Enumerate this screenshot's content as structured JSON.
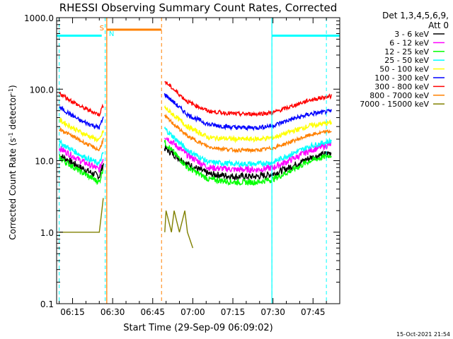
{
  "chart_data": {
    "type": "line",
    "title": "RHESSI Observing Summary Count Rates, Corrected",
    "xlabel": "Start Time (29-Sep-09 06:09:02)",
    "ylabel_parts": [
      "Corrected Count Rate (s",
      "-1",
      " detector",
      "-1",
      ")"
    ],
    "yscale": "log",
    "ylim": [
      0.1,
      1000
    ],
    "xlim_minutes_after_0600": [
      9.03,
      115.0
    ],
    "x_ticks": [
      {
        "label": "06:15",
        "m": 15
      },
      {
        "label": "06:30",
        "m": 30
      },
      {
        "label": "06:45",
        "m": 45
      },
      {
        "label": "07:00",
        "m": 60
      },
      {
        "label": "07:15",
        "m": 75
      },
      {
        "label": "07:30",
        "m": 90
      },
      {
        "label": "07:45",
        "m": 105
      }
    ],
    "y_ticks": [
      {
        "label": "0.1",
        "v": 0.1
      },
      {
        "label": "1.0",
        "v": 1
      },
      {
        "label": "10.0",
        "v": 10
      },
      {
        "label": "100.0",
        "v": 100
      },
      {
        "label": "1000.0",
        "v": 1000
      }
    ],
    "legend_header": [
      "Det 1,3,4,5,6,9,",
      "Att 0"
    ],
    "legend_placement": "right",
    "series": [
      {
        "name": "3 - 6 keV",
        "color": "#000000",
        "x": [
          10,
          18,
          25,
          26.5,
          49.5,
          58,
          66,
          76,
          84,
          90,
          96,
          104,
          112
        ],
        "y": [
          12,
          8,
          6,
          9,
          15,
          9,
          6.5,
          6,
          6,
          6.5,
          8,
          11,
          13
        ]
      },
      {
        "name": "6 - 12 keV",
        "color": "#ff00ff",
        "x": [
          10,
          18,
          25,
          26.5,
          49.5,
          58,
          66,
          76,
          84,
          90,
          96,
          104,
          112
        ],
        "y": [
          15,
          10,
          7.5,
          11,
          22,
          12,
          8,
          7.5,
          7.5,
          8,
          10,
          14,
          17
        ]
      },
      {
        "name": "12 - 25 keV",
        "color": "#00ff00",
        "x": [
          10,
          18,
          25,
          26.5,
          49.5,
          58,
          66,
          76,
          84,
          90,
          96,
          104,
          112
        ],
        "y": [
          11,
          7,
          5,
          8,
          18,
          8,
          5.5,
          5,
          5,
          5.5,
          7,
          10,
          12
        ]
      },
      {
        "name": "25 - 50 keV",
        "color": "#00ffff",
        "x": [
          10,
          18,
          25,
          26.5,
          49.5,
          58,
          66,
          76,
          84,
          90,
          96,
          104,
          112
        ],
        "y": [
          18,
          12,
          9,
          13,
          28,
          14,
          9.5,
          9,
          9,
          9.5,
          12,
          16,
          19
        ]
      },
      {
        "name": "50 - 100 keV",
        "color": "#ffff00",
        "x": [
          10,
          18,
          25,
          26.5,
          49.5,
          58,
          66,
          76,
          84,
          90,
          96,
          104,
          112
        ],
        "y": [
          37,
          25,
          19,
          26,
          55,
          30,
          21,
          20,
          20,
          21,
          25,
          31,
          34
        ]
      },
      {
        "name": "100 - 300 keV",
        "color": "#0000ff",
        "x": [
          10,
          18,
          25,
          26.5,
          49.5,
          58,
          66,
          76,
          84,
          90,
          96,
          104,
          112
        ],
        "y": [
          56,
          36,
          29,
          40,
          85,
          44,
          32,
          29,
          29,
          31,
          37,
          45,
          49
        ]
      },
      {
        "name": "300 - 800 keV",
        "color": "#ff0000",
        "x": [
          10,
          18,
          25,
          26.5,
          49.5,
          58,
          66,
          76,
          84,
          90,
          96,
          104,
          112
        ],
        "y": [
          88,
          57,
          44,
          61,
          128,
          67,
          49,
          45,
          45,
          47,
          56,
          71,
          80
        ]
      },
      {
        "name": "800 - 7000 keV",
        "color": "#ff8000",
        "x": [
          10,
          18,
          25,
          26.5,
          49.5,
          58,
          66,
          76,
          84,
          90,
          96,
          104,
          112
        ],
        "y": [
          28,
          19,
          14,
          20,
          42,
          22,
          15.5,
          14,
          14,
          15,
          18,
          23,
          26
        ]
      },
      {
        "name": "7000 - 15000 keV",
        "color": "#808000",
        "x": [
          10,
          25,
          26.5,
          49.5,
          50,
          52,
          53,
          55,
          57,
          58,
          60
        ],
        "y": [
          1,
          1,
          3,
          1,
          2,
          1,
          2,
          1,
          2,
          1,
          0.6
        ]
      }
    ],
    "annotations": {
      "flags": [
        {
          "label": "S",
          "color": "#ff8000"
        },
        {
          "label": "N",
          "color": "#00ffff"
        }
      ],
      "dashed_verticals": [
        {
          "m": 10,
          "color": "#00ffff"
        },
        {
          "m": 27.2,
          "color": "#00ffff"
        },
        {
          "m": 27.8,
          "color": "#ff8000"
        },
        {
          "m": 48.3,
          "color": "#ff8000"
        },
        {
          "m": 89.6,
          "color": "#00ffff"
        },
        {
          "m": 110.0,
          "color": "#00ffff"
        }
      ],
      "solid_verticals": [
        {
          "m": 27.8,
          "color": "#ff8000"
        },
        {
          "m": 89.6,
          "color": "#00ffff"
        }
      ],
      "top_bars": [
        {
          "x0": 9.03,
          "x1": 25.9,
          "y": 560,
          "color": "#00ffff"
        },
        {
          "x0": 27.8,
          "x1": 48.3,
          "y": 680,
          "color": "#ff8000"
        },
        {
          "x0": 89.6,
          "x1": 115.0,
          "y": 560,
          "color": "#00ffff"
        }
      ]
    }
  },
  "footer": {
    "timestamp": "15-Oct-2021 21:54"
  }
}
